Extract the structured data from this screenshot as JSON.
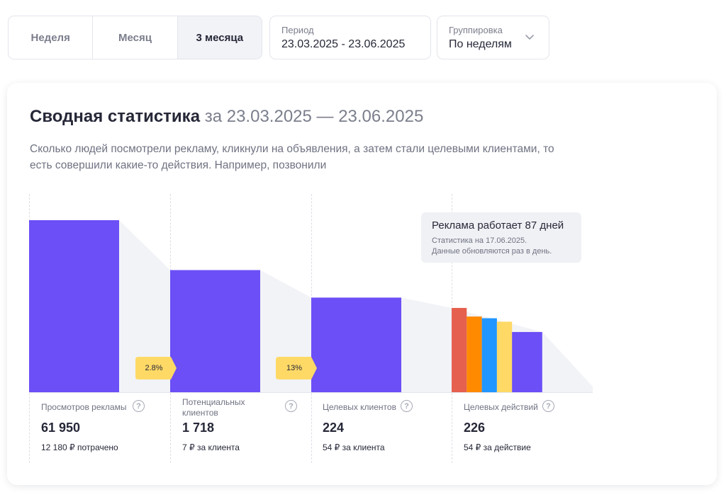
{
  "period_tabs": [
    {
      "label": "Неделя",
      "active": false
    },
    {
      "label": "Месяц",
      "active": false
    },
    {
      "label": "3 месяца",
      "active": true
    }
  ],
  "period_field": {
    "label": "Период",
    "value": "23.03.2025 - 23.06.2025"
  },
  "grouping_field": {
    "label": "Группировка",
    "value": "По неделям",
    "icon": "chevron-down-icon"
  },
  "summary": {
    "title": "Сводная статистика",
    "title_range": "за 23.03.2025 — 23.06.2025",
    "description": "Сколько людей посмотрели рекламу, кликнули на объявления, а затем стали целевыми клиентами, то есть совершили какие-то действия. Например, позвонили"
  },
  "tooltip": {
    "title": "Реклама работает 87 дней",
    "line1": "Статистика на 17.06.2025.",
    "line2": "Данные обновляются раз в день."
  },
  "conversions": [
    {
      "label": "2.8%",
      "value": 2.8
    },
    {
      "label": "13%",
      "value": 13
    }
  ],
  "stats": [
    {
      "name": "Просмотров рекламы",
      "value": "61 950",
      "sub": "12 180 ₽ потрачено"
    },
    {
      "name": "Потенциальных клиентов",
      "value": "1 718",
      "sub": "7 ₽ за клиента"
    },
    {
      "name": "Целевых клиентов",
      "value": "224",
      "sub": "54 ₽ за клиента"
    },
    {
      "name": "Целевых действий",
      "value": "226",
      "sub": "54 ₽ за действие"
    }
  ],
  "chart_data": {
    "type": "bar",
    "categories": [
      "Просмотров рекламы",
      "Потенциальных клиентов",
      "Целевых клиентов",
      "Целевых действий"
    ],
    "funnel_levels": [
      1.0,
      0.71,
      0.55
    ],
    "action_breakdown_levels": [
      0.49,
      0.44,
      0.43,
      0.41,
      0.35,
      0.35
    ],
    "action_breakdown_colors": [
      "#e5604f",
      "#ff8a00",
      "#2196ff",
      "#ffd966",
      "#6c4ff6",
      "#6c4ff6"
    ],
    "colors": {
      "bar": "#6c4ff6",
      "connector": "#f2f3f7",
      "badge": "#ffd966"
    }
  },
  "help_icon": "question-circle-icon"
}
